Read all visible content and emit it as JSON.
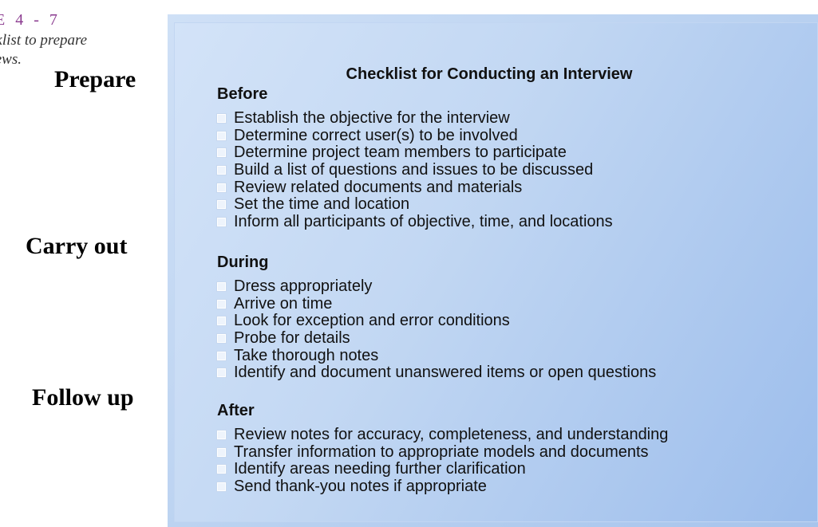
{
  "figure": {
    "number_parts": [
      "E",
      "4",
      "-",
      "7"
    ],
    "caption_lines": [
      "cklist to prepare",
      "views."
    ]
  },
  "phases": {
    "prepare": "Prepare",
    "carry_out": "Carry out",
    "follow_up": "Follow up"
  },
  "panel": {
    "title": "Checklist for Conducting an Interview"
  },
  "sections": [
    {
      "heading": "Before",
      "items": [
        "Establish the objective for the interview",
        "Determine correct user(s) to be involved",
        "Determine project team members to participate",
        "Build a list of questions and issues to be discussed",
        "Review related documents and materials",
        "Set the time and location",
        "Inform all participants of objective, time, and locations"
      ]
    },
    {
      "heading": "During",
      "items": [
        "Dress appropriately",
        "Arrive on time",
        "Look for exception and error conditions",
        "Probe for details",
        "Take thorough notes",
        "Identify and document unanswered items or open questions"
      ]
    },
    {
      "heading": "After",
      "items": [
        "Review notes for accuracy, completeness, and understanding",
        "Transfer information to appropriate models and documents",
        "Identify areas needing further clarification",
        "Send thank-you notes if appropriate"
      ]
    }
  ],
  "colors": {
    "figure_number": "#8a3a8f",
    "panel_light": "#d3e3f8",
    "panel_dark": "#9cbdec"
  }
}
